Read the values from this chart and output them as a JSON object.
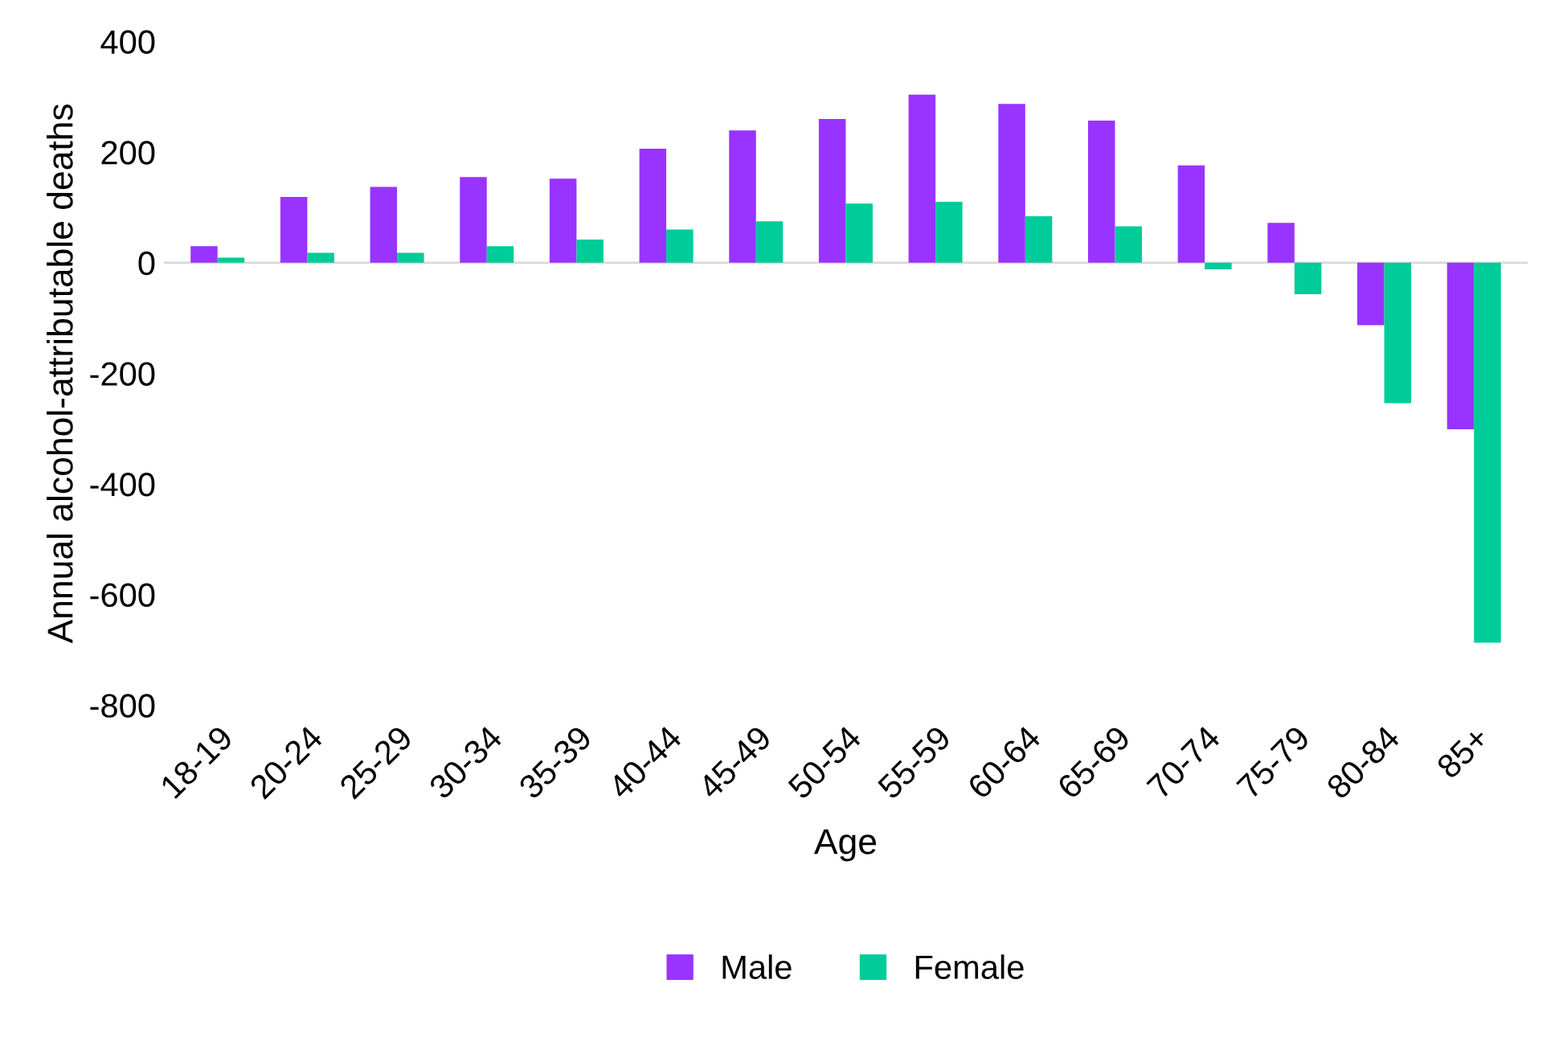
{
  "chart_data": {
    "type": "bar",
    "xlabel": "Age",
    "ylabel": "Annual alcohol-attributable deaths",
    "categories": [
      "18-19",
      "20-24",
      "25-29",
      "30-34",
      "35-39",
      "40-44",
      "45-49",
      "50-54",
      "55-59",
      "60-64",
      "65-69",
      "70-74",
      "75-79",
      "80-84",
      "85+"
    ],
    "series": [
      {
        "name": "Male",
        "color": "#9933ff",
        "values": [
          30,
          119,
          137,
          155,
          152,
          206,
          239,
          260,
          304,
          287,
          257,
          176,
          72,
          -113,
          -301
        ]
      },
      {
        "name": "Female",
        "color": "#00cc99",
        "values": [
          9,
          18,
          18,
          30,
          42,
          60,
          75,
          107,
          110,
          84,
          66,
          -12,
          -57,
          -254,
          -687
        ]
      }
    ],
    "ylim": [
      -800,
      400
    ],
    "yticks": [
      -800,
      -600,
      -400,
      -200,
      0,
      200,
      400
    ],
    "grid": false,
    "ref_lines": [
      {
        "axis": "y",
        "value": 0,
        "color": "#d9d9d9"
      }
    ],
    "legend": "bottom"
  }
}
